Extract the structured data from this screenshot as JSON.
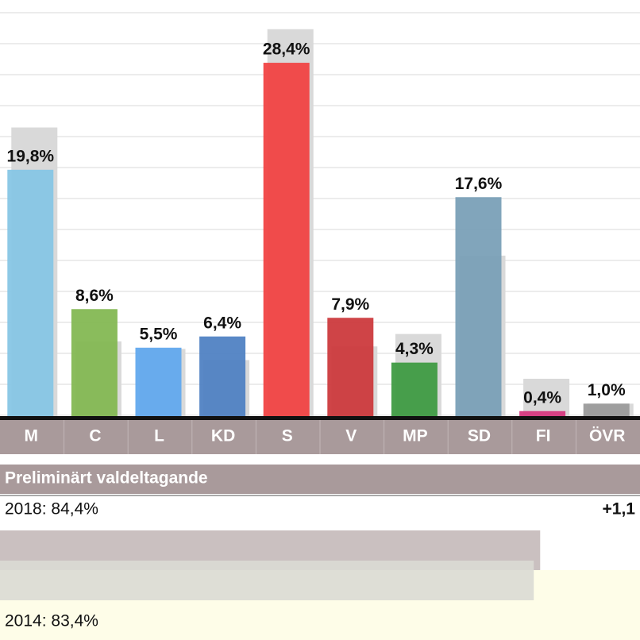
{
  "chart_data": {
    "type": "bar",
    "categories": [
      "M",
      "C",
      "L",
      "KD",
      "S",
      "V",
      "MP",
      "SD",
      "FI",
      "ÖVR"
    ],
    "values": [
      19.8,
      8.6,
      5.5,
      6.4,
      28.4,
      7.9,
      4.3,
      17.6,
      0.4,
      1.0
    ],
    "value_labels": [
      "19,8%",
      "8,6%",
      "5,5%",
      "6,4%",
      "28,4%",
      "7,9%",
      "4,3%",
      "17,6%",
      "0,4%",
      "1,0%"
    ],
    "previous_values": [
      23.2,
      6.0,
      5.4,
      4.5,
      31.1,
      5.6,
      6.6,
      12.9,
      3.0,
      1.0
    ],
    "colors": [
      "#87c6e5",
      "#84b853",
      "#62a9ee",
      "#5082c3",
      "#f14343",
      "#cc3a3d",
      "#3f9b43",
      "#7aa0b7",
      "#d6387f",
      "#9b9b9b"
    ],
    "previous_color": "#d9d9d9",
    "ylim": [
      0,
      33
    ]
  },
  "turnout": {
    "title": "Preliminärt valdeltagande",
    "rows": [
      {
        "label": "2018: 84,4%",
        "value": 84.4,
        "color": "#c4b9b9"
      },
      {
        "label": "2014: 83,4%",
        "value": 83.4,
        "color": "#dadad4"
      }
    ],
    "change_label": "+1,1",
    "xlim": [
      0,
      100
    ]
  }
}
